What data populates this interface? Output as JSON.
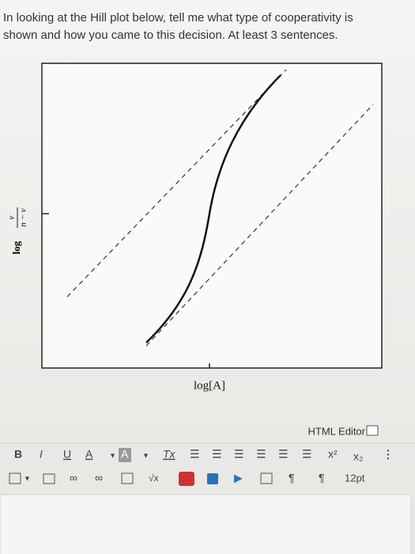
{
  "question": "In looking at the Hill plot below, tell me what type of cooperativity is shown and how you came to this decision. At least 3 sentences.",
  "figure": {
    "y_label": {
      "log": "log",
      "numerator": "ν",
      "denominator": "n − ν"
    },
    "x_label": "log[A]"
  },
  "editor": {
    "title": "HTML Editor",
    "toolbar": {
      "bold": "B",
      "italic": "I",
      "underline": "U",
      "font_color": "A",
      "highlight": "A",
      "clear_format": "Tx",
      "superscript": "x²",
      "subscript": "x₂",
      "font_size": "12pt"
    }
  }
}
